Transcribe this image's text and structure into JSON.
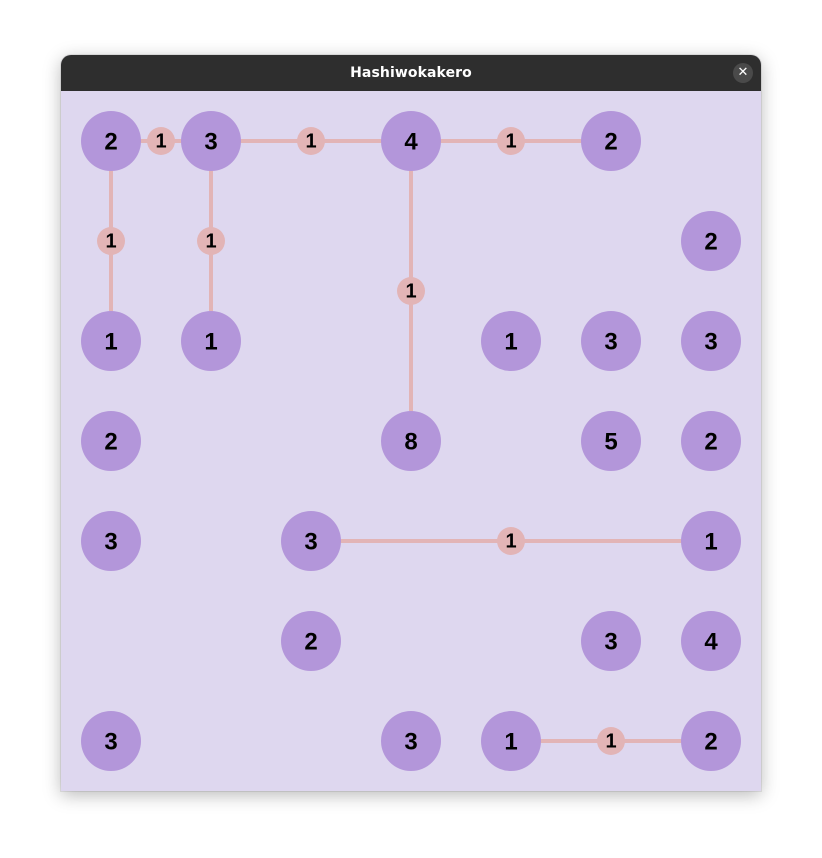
{
  "window": {
    "title": "Hashiwokakero",
    "close_glyph": "✕",
    "close_icon": "close-icon"
  },
  "colors": {
    "titlebar": "#2e2e2e",
    "board_background": "#ded7ef",
    "island": "#b396da",
    "bridge": "#e2b4b6",
    "text": "#000000"
  },
  "grid": {
    "cols": 7,
    "rows": 7
  },
  "islands": [
    {
      "col": 0,
      "row": 0,
      "value": "2"
    },
    {
      "col": 1,
      "row": 0,
      "value": "3"
    },
    {
      "col": 3,
      "row": 0,
      "value": "4"
    },
    {
      "col": 5,
      "row": 0,
      "value": "2"
    },
    {
      "col": 6,
      "row": 1,
      "value": "2"
    },
    {
      "col": 0,
      "row": 2,
      "value": "1"
    },
    {
      "col": 1,
      "row": 2,
      "value": "1"
    },
    {
      "col": 4,
      "row": 2,
      "value": "1"
    },
    {
      "col": 5,
      "row": 2,
      "value": "3"
    },
    {
      "col": 6,
      "row": 2,
      "value": "3"
    },
    {
      "col": 0,
      "row": 3,
      "value": "2"
    },
    {
      "col": 3,
      "row": 3,
      "value": "8"
    },
    {
      "col": 5,
      "row": 3,
      "value": "5"
    },
    {
      "col": 6,
      "row": 3,
      "value": "2"
    },
    {
      "col": 0,
      "row": 4,
      "value": "3"
    },
    {
      "col": 2,
      "row": 4,
      "value": "3"
    },
    {
      "col": 6,
      "row": 4,
      "value": "1"
    },
    {
      "col": 2,
      "row": 5,
      "value": "2"
    },
    {
      "col": 5,
      "row": 5,
      "value": "3"
    },
    {
      "col": 6,
      "row": 5,
      "value": "4"
    },
    {
      "col": 0,
      "row": 6,
      "value": "3"
    },
    {
      "col": 3,
      "row": 6,
      "value": "3"
    },
    {
      "col": 4,
      "row": 6,
      "value": "1"
    },
    {
      "col": 6,
      "row": 6,
      "value": "2"
    }
  ],
  "bridges": [
    {
      "from": [
        0,
        0
      ],
      "to": [
        1,
        0
      ],
      "count": "1"
    },
    {
      "from": [
        1,
        0
      ],
      "to": [
        3,
        0
      ],
      "count": "1"
    },
    {
      "from": [
        3,
        0
      ],
      "to": [
        5,
        0
      ],
      "count": "1"
    },
    {
      "from": [
        0,
        0
      ],
      "to": [
        0,
        2
      ],
      "count": "1"
    },
    {
      "from": [
        1,
        0
      ],
      "to": [
        1,
        2
      ],
      "count": "1"
    },
    {
      "from": [
        3,
        0
      ],
      "to": [
        3,
        3
      ],
      "count": "1"
    },
    {
      "from": [
        2,
        4
      ],
      "to": [
        6,
        4
      ],
      "count": "1"
    },
    {
      "from": [
        4,
        6
      ],
      "to": [
        6,
        6
      ],
      "count": "1"
    }
  ]
}
